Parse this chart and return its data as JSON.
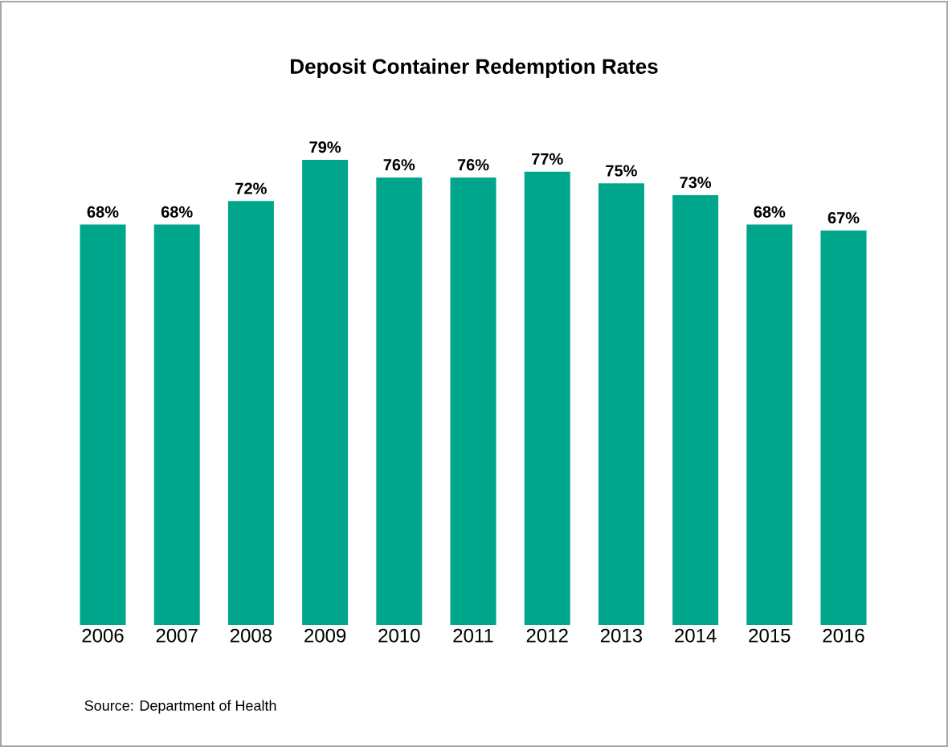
{
  "chart_data": {
    "type": "bar",
    "title": "Deposit Container Redemption Rates",
    "categories": [
      "2006",
      "2007",
      "2008",
      "2009",
      "2010",
      "2011",
      "2012",
      "2013",
      "2014",
      "2015",
      "2016"
    ],
    "values": [
      68,
      68,
      72,
      79,
      76,
      76,
      77,
      75,
      73,
      68,
      67
    ],
    "value_labels": [
      "68%",
      "68%",
      "72%",
      "79%",
      "76%",
      "76%",
      "77%",
      "75%",
      "73%",
      "68%",
      "67%"
    ],
    "color": "#00a68c",
    "annotations": [
      "Source: Department of Health"
    ]
  }
}
